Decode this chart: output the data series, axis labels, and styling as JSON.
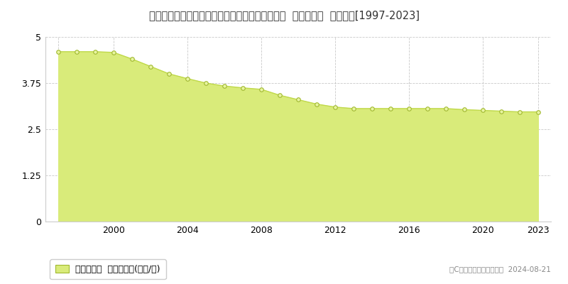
{
  "title": "福島県会津若松市高野町大字界沢字界沢１１２番  基準地価格  地価推移[1997-2023]",
  "years": [
    1997,
    1998,
    1999,
    2000,
    2001,
    2002,
    2003,
    2004,
    2005,
    2006,
    2007,
    2008,
    2009,
    2010,
    2011,
    2012,
    2013,
    2014,
    2015,
    2016,
    2017,
    2018,
    2019,
    2020,
    2021,
    2022,
    2023
  ],
  "values": [
    4.6,
    4.6,
    4.6,
    4.58,
    4.4,
    4.2,
    4.0,
    3.87,
    3.75,
    3.67,
    3.62,
    3.58,
    3.42,
    3.3,
    3.18,
    3.1,
    3.06,
    3.06,
    3.06,
    3.06,
    3.06,
    3.06,
    3.03,
    3.01,
    2.99,
    2.97,
    2.97
  ],
  "ylim": [
    0,
    5
  ],
  "yticks": [
    0,
    1.25,
    2.5,
    3.75,
    5
  ],
  "ytick_labels": [
    "0",
    "1.25",
    "2.5",
    "3.75",
    "5"
  ],
  "xticks": [
    1997,
    2000,
    2004,
    2008,
    2012,
    2016,
    2020,
    2023
  ],
  "xtick_labels": [
    "",
    "2000",
    "2004",
    "2008",
    "2012",
    "2016",
    "2020",
    "2023"
  ],
  "fill_color": "#d9eb7a",
  "line_color": "#c0d94a",
  "marker_facecolor": "#e8f5a0",
  "marker_edgecolor": "#a0b830",
  "grid_color": "#bbbbbb",
  "bg_color": "#ffffff",
  "plot_bg_color": "#ffffff",
  "legend_label": "基準地価格  平均坪単価(万円/坪)",
  "copyright_text": "（C）土地価格ドットコム  2024-08-21",
  "title_fontsize": 10.5,
  "axis_fontsize": 9,
  "legend_fontsize": 9
}
